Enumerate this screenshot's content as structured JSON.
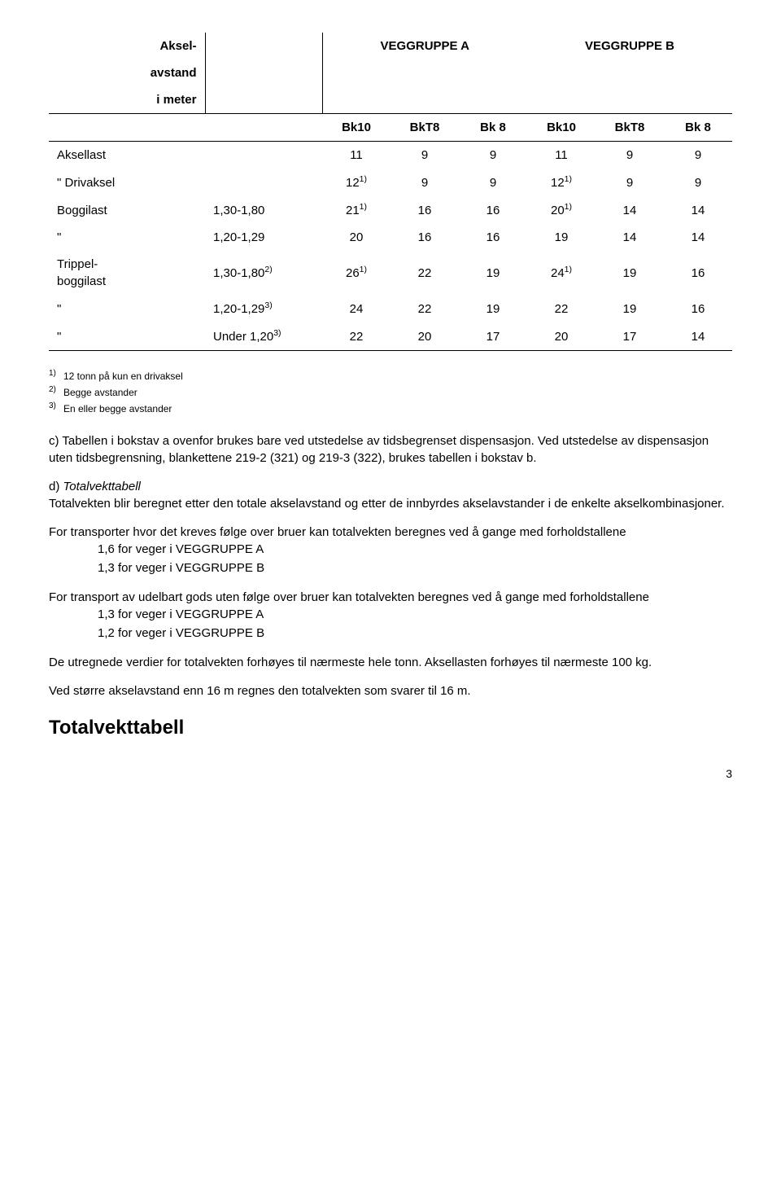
{
  "table": {
    "header": {
      "aksel": "Aksel-",
      "avstand": "avstand",
      "imeter": "i meter",
      "groupA": "VEGGRUPPE A",
      "groupB": "VEGGRUPPE B",
      "cols": [
        "Bk10",
        "BkT8",
        "Bk 8",
        "Bk10",
        "BkT8",
        "Bk 8"
      ]
    },
    "rows": [
      {
        "label": "Aksellast",
        "meter": "",
        "v": [
          "11",
          "9",
          "9",
          "11",
          "9",
          "9"
        ],
        "sup": [
          "",
          "",
          "",
          "",
          "",
          ""
        ]
      },
      {
        "label": "\"   Drivaksel",
        "meter": "",
        "v": [
          "12",
          "9",
          "9",
          "12",
          "9",
          "9"
        ],
        "sup": [
          "1)",
          "",
          "",
          "1)",
          "",
          ""
        ]
      },
      {
        "label": "Boggilast",
        "meter": "1,30-1,80",
        "v": [
          "21",
          "16",
          "16",
          "20",
          "14",
          "14"
        ],
        "sup": [
          "1)",
          "",
          "",
          "1)",
          "",
          ""
        ]
      },
      {
        "label": "\"",
        "meter": "1,20-1,29",
        "v": [
          "20",
          "16",
          "16",
          "19",
          "14",
          "14"
        ],
        "sup": [
          "",
          "",
          "",
          "",
          "",
          ""
        ]
      },
      {
        "label": "Trippel-<br>boggilast",
        "meter": "1,30-1,80",
        "metersup": "2)",
        "v": [
          "26",
          "22",
          "19",
          "24",
          "19",
          "16"
        ],
        "sup": [
          "1)",
          "",
          "",
          "1)",
          "",
          ""
        ]
      },
      {
        "label": "\"",
        "meter": "1,20-1,29",
        "metersup": "3)",
        "v": [
          "24",
          "22",
          "19",
          "22",
          "19",
          "16"
        ],
        "sup": [
          "",
          "",
          "",
          "",
          "",
          ""
        ]
      },
      {
        "label": "\"",
        "meter": "Under 1,20",
        "metersup": "3)",
        "v": [
          "22",
          "20",
          "17",
          "20",
          "17",
          "14"
        ],
        "sup": [
          "",
          "",
          "",
          "",
          "",
          ""
        ]
      }
    ]
  },
  "footnotes": [
    {
      "num": "1)",
      "text": "12 tonn på kun en drivaksel"
    },
    {
      "num": "2)",
      "text": "Begge avstander"
    },
    {
      "num": "3)",
      "text": "En eller begge avstander"
    }
  ],
  "c_block": {
    "letter": "c)",
    "text1": "Tabellen i bokstav a ovenfor brukes bare ved utstedelse av tidsbegrenset dispensasjon. Ved utstedelse av dispensasjon uten tidsbegrensning, blankettene 219-2 (321) og 219-3 (322), brukes tabellen i bokstav b."
  },
  "d_block": {
    "letter": "d)",
    "title": "Totalvekttabell",
    "text1": "Totalvekten blir beregnet etter den totale akselavstand og etter de innbyrdes akselavstander  i de enkelte akselkombinasjoner."
  },
  "para_follow1": "For transporter hvor det kreves følge over bruer kan totalvekten beregnes ved å gange med forholdstallene",
  "factors1": [
    "1,6 for veger i VEGGRUPPE A",
    "1,3 for veger i VEGGRUPPE B"
  ],
  "para_follow2": "For transport av udelbart gods uten følge over bruer kan totalvekten beregnes ved å gange med forholdstallene",
  "factors2": [
    "1,3  for veger i VEGGRUPPE A",
    "1,2  for veger i VEGGRUPPE B"
  ],
  "para_round": "De utregnede verdier for totalvekten forhøyes til nærmeste hele tonn. Aksellasten forhøyes til nærmeste 100 kg.",
  "para_16m": "Ved større akselavstand enn 16 m regnes den totalvekten som svarer til 16 m.",
  "bottom_title": "Totalvekttabell",
  "page_number": "3"
}
